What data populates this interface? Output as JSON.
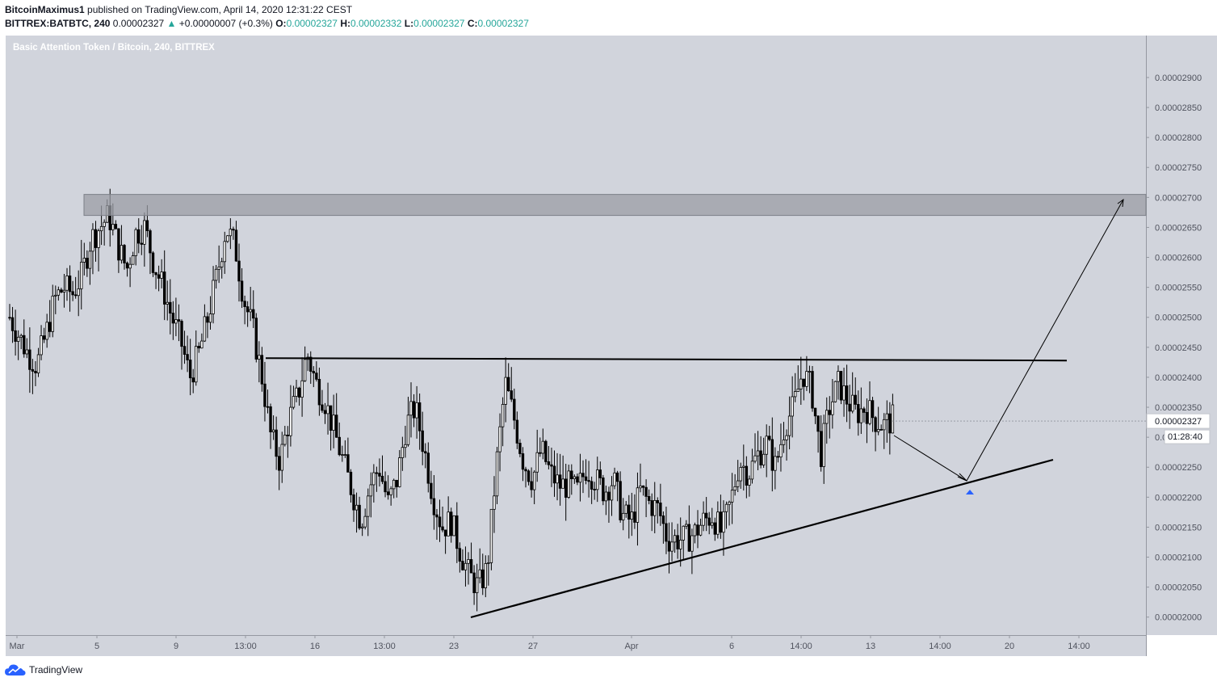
{
  "header": {
    "author": "BitcoinMaximus1",
    "published_text": " published on TradingView.com, April 14, 2020 12:31:22 CEST",
    "symbol": "BITTREX:BATBTC, 240",
    "last_price": "0.00002327",
    "change": "+0.00000007 (+0.3%)",
    "open_label": "O:",
    "open": "0.00002327",
    "high_label": "H:",
    "high": "0.00002332",
    "low_label": "L:",
    "low": "0.00002327",
    "close_label": "C:",
    "close": "0.00002327"
  },
  "chart_title": "Basic Attention Token / Bitcoin, 240, BITTREX",
  "price_badge": "0.00002327",
  "countdown": "01:28:40",
  "footer": {
    "brand": "TradingView"
  },
  "colors": {
    "background": "#d1d4dc",
    "up": "#26a69a",
    "candle": "#000000",
    "resistance_zone": "#9b9ea6",
    "alert_marker": "#2962ff"
  },
  "chart_data": {
    "type": "candlestick",
    "title": "Basic Attention Token / Bitcoin, 240, BITTREX",
    "ylim": [
      1.97e-05,
      2.97e-05
    ],
    "y_ticks": [
      "0.00002000",
      "0.00002050",
      "0.00002100",
      "0.00002150",
      "0.00002200",
      "0.00002250",
      "0.00002300",
      "0.00002350",
      "0.00002400",
      "0.00002450",
      "0.00002500",
      "0.00002550",
      "0.00002600",
      "0.00002650",
      "0.00002700",
      "0.00002750",
      "0.00002800",
      "0.00002850",
      "0.00002900"
    ],
    "x_ticks": [
      "Mar",
      "5",
      "9",
      "13:00",
      "16",
      "13:00",
      "23",
      "27",
      "Apr",
      "6",
      "14:00",
      "13",
      "14:00",
      "20",
      "14:00"
    ],
    "approx_price_path": [
      2.5e-05,
      2.47e-05,
      2.44e-05,
      2.42e-05,
      2.47e-05,
      2.53e-05,
      2.55e-05,
      2.54e-05,
      2.57e-05,
      2.63e-05,
      2.65e-05,
      2.67e-05,
      2.62e-05,
      2.58e-05,
      2.64e-05,
      2.65e-05,
      2.59e-05,
      2.55e-05,
      2.5e-05,
      2.46e-05,
      2.4e-05,
      2.44e-05,
      2.5e-05,
      2.57e-05,
      2.65e-05,
      2.62e-05,
      2.53e-05,
      2.48e-05,
      2.4e-05,
      2.3e-05,
      2.26e-05,
      2.33e-05,
      2.37e-05,
      2.44e-05,
      2.39e-05,
      2.36e-05,
      2.31e-05,
      2.26e-05,
      2.21e-05,
      2.16e-05,
      2.22e-05,
      2.25e-05,
      2.19e-05,
      2.23e-05,
      2.32e-05,
      2.35e-05,
      2.28e-05,
      2.2e-05,
      2.15e-05,
      2.16e-05,
      2.11e-05,
      2.07e-05,
      2.05e-05,
      2.08e-05,
      2.25e-05,
      2.39e-05,
      2.33e-05,
      2.26e-05,
      2.23e-05,
      2.28e-05,
      2.24e-05,
      2.22e-05,
      2.22e-05,
      2.21e-05,
      2.25e-05,
      2.23e-05,
      2.21e-05,
      2.23e-05,
      2.17e-05,
      2.16e-05,
      2.21e-05,
      2.19e-05,
      2.18e-05,
      2.13e-05,
      2.13e-05,
      2.13e-05,
      2.14e-05,
      2.16e-05,
      2.17e-05,
      2.14e-05,
      2.19e-05,
      2.26e-05,
      2.24e-05,
      2.27e-05,
      2.29e-05,
      2.25e-05,
      2.32e-05,
      2.35e-05,
      2.41e-05,
      2.38e-05,
      2.27e-05,
      2.35e-05,
      2.39e-05,
      2.36e-05,
      2.34e-05,
      2.35e-05,
      2.33e-05,
      2.32e-05,
      2.33e-05
    ],
    "annotations": {
      "resistance_zone": [
        2.67e-05,
        2.705e-05
      ],
      "horizontal_resistance": 2.432e-05,
      "ascending_support_line": [
        [
          2.018e-05,
          "23"
        ],
        [
          2.27e-05,
          "20"
        ]
      ],
      "projection_arrow": [
        "down to support",
        "up to 0.00002690"
      ],
      "current_price": 2.327e-05
    }
  }
}
